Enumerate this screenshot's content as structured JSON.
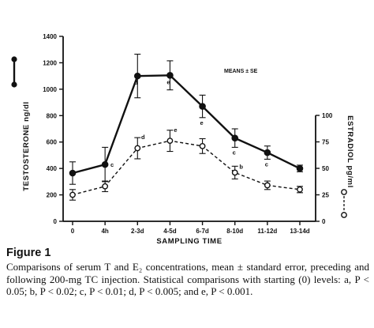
{
  "chart_data": {
    "type": "line",
    "categories": [
      "0",
      "4h",
      "2-3d",
      "4-5d",
      "6-7d",
      "8-10d",
      "11-12d",
      "13-14d"
    ],
    "xlabel": "SAMPLING TIME",
    "ylabel_left": "TESTOSTERONE ng/dl",
    "ylabel_right": "ESTRADIOL pg/ml",
    "ylim_left": [
      0,
      1400
    ],
    "yticks_left": [
      0,
      200,
      400,
      600,
      800,
      1000,
      1200,
      1400
    ],
    "ylim_right": [
      0,
      100
    ],
    "yticks_right": [
      0,
      25,
      50,
      75,
      100
    ],
    "annotation": "MEANS ± SE",
    "series": [
      {
        "name": "TESTOSTERONE",
        "axis": "left",
        "marker": "filled",
        "values": [
          365,
          430,
          1100,
          1105,
          870,
          630,
          520,
          400
        ],
        "errors": [
          85,
          130,
          165,
          110,
          85,
          70,
          50,
          25
        ],
        "labels": [
          "",
          "c",
          "d",
          "e",
          "e",
          "c",
          "c",
          ""
        ]
      },
      {
        "name": "ESTRADIOL",
        "axis": "right",
        "marker": "open",
        "values": [
          25,
          33,
          69,
          76,
          71,
          46,
          34,
          30
        ],
        "errors": [
          5,
          5,
          10,
          10,
          7,
          6,
          4,
          3
        ],
        "labels": [
          "",
          "",
          "d",
          "e",
          "",
          "b",
          "",
          ""
        ]
      }
    ]
  },
  "caption": {
    "title": "Figure 1",
    "text": "Comparisons of serum T and E₂ concentrations, mean ± standard error, preceding and following 200-mg TC injection. Statistical comparisons with starting (0) levels: a, P < 0.05; b, P < 0.02; c, P < 0.01; d, P < 0.005; and e, P < 0.001."
  }
}
